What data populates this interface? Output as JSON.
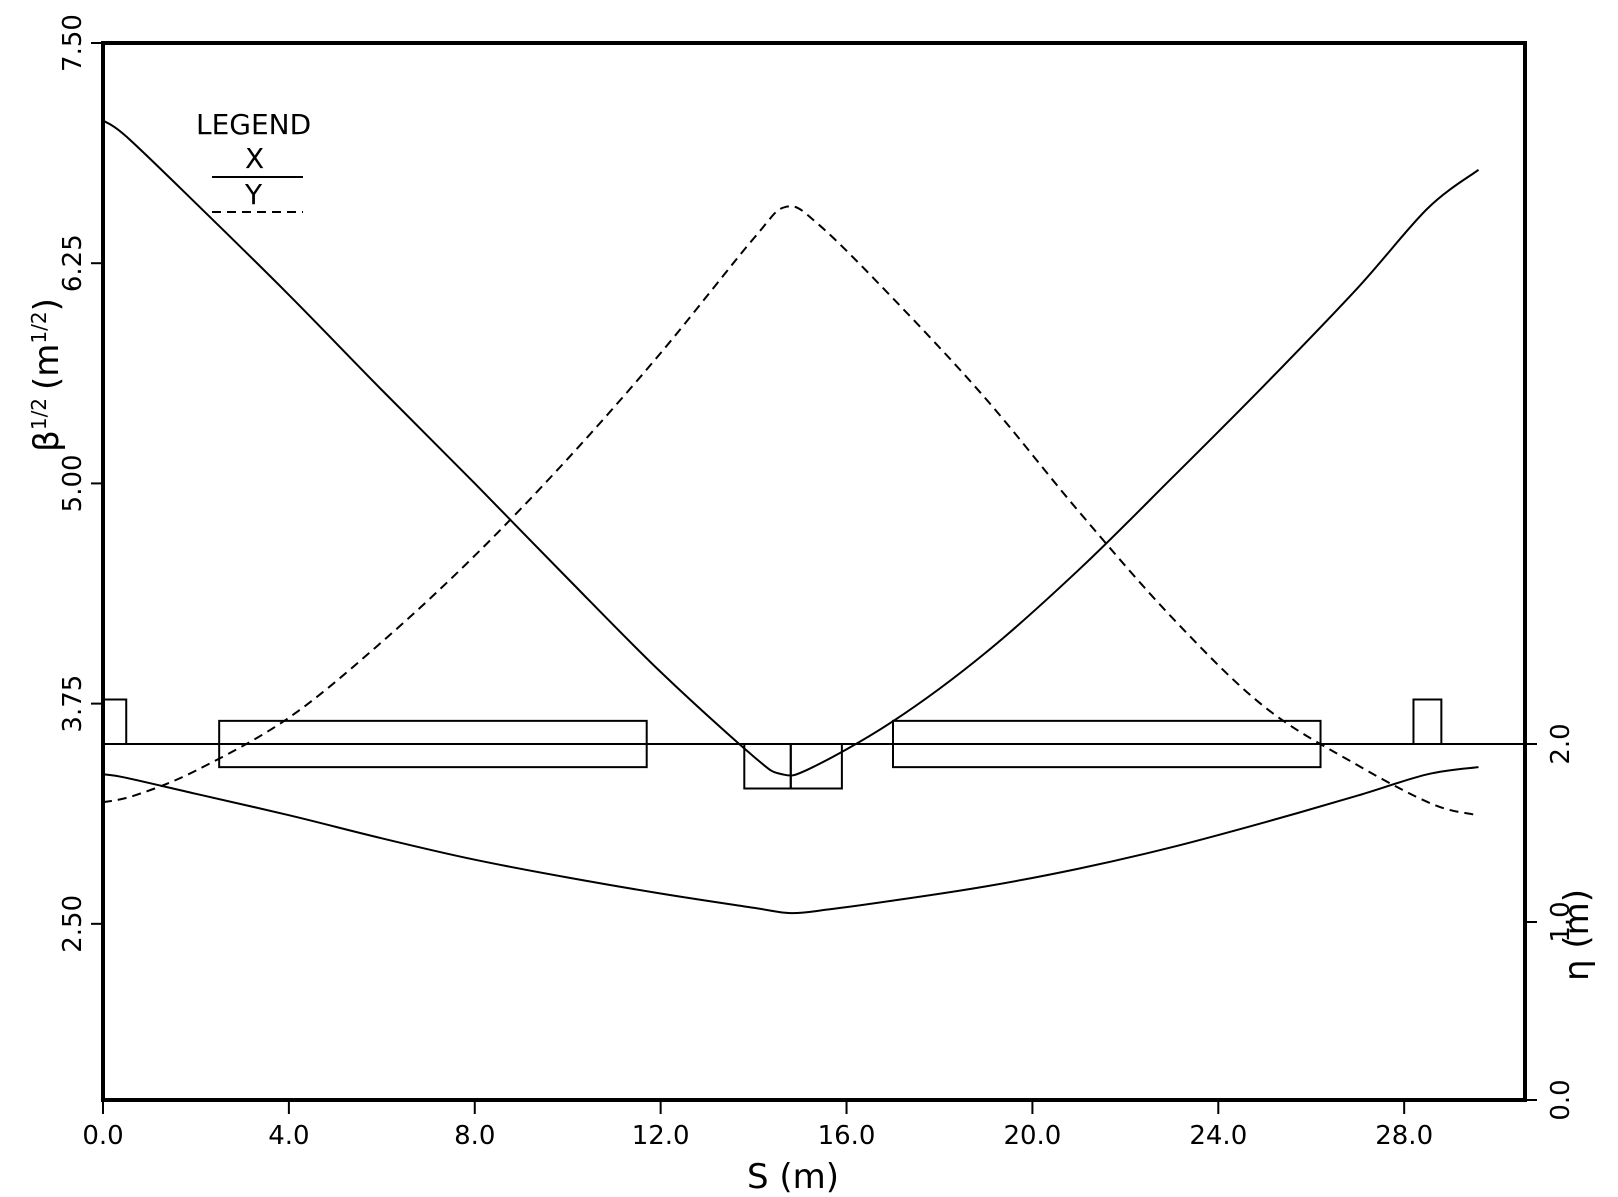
{
  "chart_data": {
    "type": "line",
    "xlabel": "S (m)",
    "ylabel_left_base": "β",
    "ylabel_left_exp1": "1/2",
    "ylabel_left_unit": "(m",
    "ylabel_left_exp2": "1/2",
    "ylabel_left_close": ")",
    "ylabel_right": "η (m)",
    "xlim": [
      0,
      30.6
    ],
    "ylim_left": [
      1.5,
      7.5
    ],
    "ylim_right": [
      0,
      2.0
    ],
    "x_ticks": [
      {
        "v": 0,
        "label": "0.0"
      },
      {
        "v": 4,
        "label": "4.0"
      },
      {
        "v": 8,
        "label": "8.0"
      },
      {
        "v": 12,
        "label": "12.0"
      },
      {
        "v": 16,
        "label": "16.0"
      },
      {
        "v": 20,
        "label": "20.0"
      },
      {
        "v": 24,
        "label": "24.0"
      },
      {
        "v": 28,
        "label": "28.0"
      }
    ],
    "y_left_ticks": [
      {
        "v": 2.5,
        "label": "2.50"
      },
      {
        "v": 3.75,
        "label": "3.75"
      },
      {
        "v": 5.0,
        "label": "5.00"
      },
      {
        "v": 6.25,
        "label": "6.25"
      },
      {
        "v": 7.5,
        "label": "7.50"
      }
    ],
    "y_right_ticks": [
      {
        "v": 0.0,
        "label": "0.0"
      },
      {
        "v": 1.0,
        "label": "1.0"
      },
      {
        "v": 2.0,
        "label": "2.0"
      }
    ],
    "legend": {
      "title": "LEGEND",
      "placement": "top-left",
      "entries": [
        {
          "name": "X",
          "style": "solid"
        },
        {
          "name": "Y",
          "style": "dashed"
        }
      ]
    },
    "series": [
      {
        "name": "X",
        "axis": "left",
        "style": "solid",
        "x": [
          0.0,
          0.5,
          2,
          4,
          6,
          8,
          10,
          12,
          14,
          14.6,
          15.2,
          17,
          19,
          21,
          23,
          25,
          27,
          28.5,
          29.6
        ],
        "y": [
          7.06,
          6.97,
          6.59,
          6.07,
          5.53,
          5.0,
          4.46,
          3.93,
          3.45,
          3.35,
          3.38,
          3.65,
          4.04,
          4.51,
          5.03,
          5.56,
          6.11,
          6.56,
          6.78
        ]
      },
      {
        "name": "Y",
        "axis": "left",
        "style": "dashed",
        "x": [
          0.0,
          0.7,
          2,
          4,
          6,
          8,
          10,
          12,
          14,
          14.7,
          15.4,
          17,
          19,
          21,
          23,
          25,
          27,
          28.6,
          29.5
        ],
        "y": [
          3.19,
          3.23,
          3.37,
          3.67,
          4.1,
          4.59,
          5.14,
          5.74,
          6.39,
          6.57,
          6.47,
          6.05,
          5.48,
          4.84,
          4.24,
          3.73,
          3.4,
          3.18,
          3.12
        ]
      },
      {
        "name": "η",
        "axis": "right",
        "style": "solid",
        "x": [
          0.0,
          0.5,
          2,
          4,
          6,
          8,
          10,
          12,
          14,
          14.8,
          15.6,
          17,
          19,
          21,
          23,
          25,
          27,
          28.5,
          29.6
        ],
        "y": [
          1.83,
          1.81,
          1.72,
          1.6,
          1.47,
          1.35,
          1.25,
          1.16,
          1.08,
          1.05,
          1.07,
          1.12,
          1.2,
          1.3,
          1.42,
          1.56,
          1.71,
          1.83,
          1.87
        ]
      }
    ],
    "magnets": [
      {
        "x0": 0.0,
        "x1": 0.5,
        "y0": 2.0,
        "y1": 2.25
      },
      {
        "x0": 2.5,
        "x1": 11.7,
        "y0": 1.87,
        "y1": 2.13
      },
      {
        "x0": 13.8,
        "x1": 14.8,
        "y0": 1.75,
        "y1": 2.0
      },
      {
        "x0": 14.8,
        "x1": 15.9,
        "y0": 1.75,
        "y1": 2.0
      },
      {
        "x0": 17.0,
        "x1": 26.2,
        "y0": 1.87,
        "y1": 2.13
      },
      {
        "x0": 28.2,
        "x1": 28.8,
        "y0": 2.0,
        "y1": 2.25
      }
    ]
  }
}
